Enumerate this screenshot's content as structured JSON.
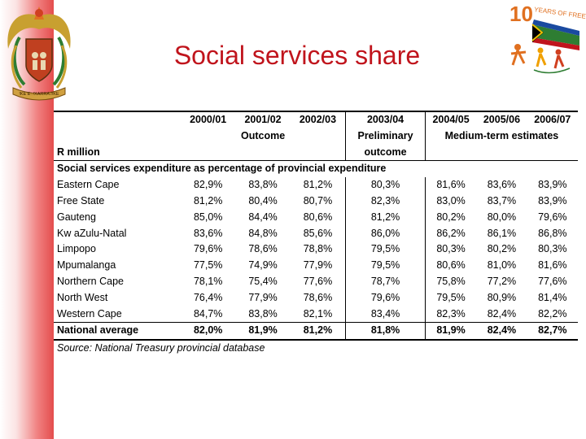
{
  "slide": {
    "title": "Social services share",
    "coat_of_arms_motto": "!KE E: /XARRA //KE",
    "anniversary_logo_text": "YEARS OF FREEDOM",
    "anniversary_number": "10"
  },
  "table": {
    "years": [
      "2000/01",
      "2001/02",
      "2002/03",
      "2003/04",
      "2004/05",
      "2005/06",
      "2006/07"
    ],
    "group_outcome": "Outcome",
    "group_preliminary_1": "Preliminary",
    "group_preliminary_2": "outcome",
    "group_medium_term": "Medium-term estimates",
    "unit_label": "R million",
    "section_heading": "Social services expenditure as percentage of provincial expenditure",
    "rows": [
      {
        "name": "Eastern Cape",
        "values": [
          "82,9%",
          "83,8%",
          "81,2%",
          "80,3%",
          "81,6%",
          "83,6%",
          "83,9%"
        ]
      },
      {
        "name": "Free State",
        "values": [
          "81,2%",
          "80,4%",
          "80,7%",
          "82,3%",
          "83,0%",
          "83,7%",
          "83,9%"
        ]
      },
      {
        "name": "Gauteng",
        "values": [
          "85,0%",
          "84,4%",
          "80,6%",
          "81,2%",
          "80,2%",
          "80,0%",
          "79,6%"
        ]
      },
      {
        "name": "Kw aZulu-Natal",
        "values": [
          "83,6%",
          "84,8%",
          "85,6%",
          "86,0%",
          "86,2%",
          "86,1%",
          "86,8%"
        ]
      },
      {
        "name": "Limpopo",
        "values": [
          "79,6%",
          "78,6%",
          "78,8%",
          "79,5%",
          "80,3%",
          "80,2%",
          "80,3%"
        ]
      },
      {
        "name": "Mpumalanga",
        "values": [
          "77,5%",
          "74,9%",
          "77,9%",
          "79,5%",
          "80,6%",
          "81,0%",
          "81,6%"
        ]
      },
      {
        "name": "Northern Cape",
        "values": [
          "78,1%",
          "75,4%",
          "77,6%",
          "78,7%",
          "75,8%",
          "77,2%",
          "77,6%"
        ]
      },
      {
        "name": "North West",
        "values": [
          "76,4%",
          "77,9%",
          "78,6%",
          "79,6%",
          "79,5%",
          "80,9%",
          "81,4%"
        ]
      },
      {
        "name": "Western Cape",
        "values": [
          "84,7%",
          "83,8%",
          "82,1%",
          "83,4%",
          "82,3%",
          "82,4%",
          "82,2%"
        ]
      }
    ],
    "national": {
      "name": "National average",
      "values": [
        "82,0%",
        "81,9%",
        "81,2%",
        "81,8%",
        "81,9%",
        "82,4%",
        "82,7%"
      ]
    },
    "source": "Source: National Treasury provincial database"
  },
  "colors": {
    "title": "#c0141c",
    "strip": "#e44d4d",
    "coat_gold": "#c8a030",
    "coat_green": "#2e7d32",
    "logo_orange": "#e07020"
  }
}
